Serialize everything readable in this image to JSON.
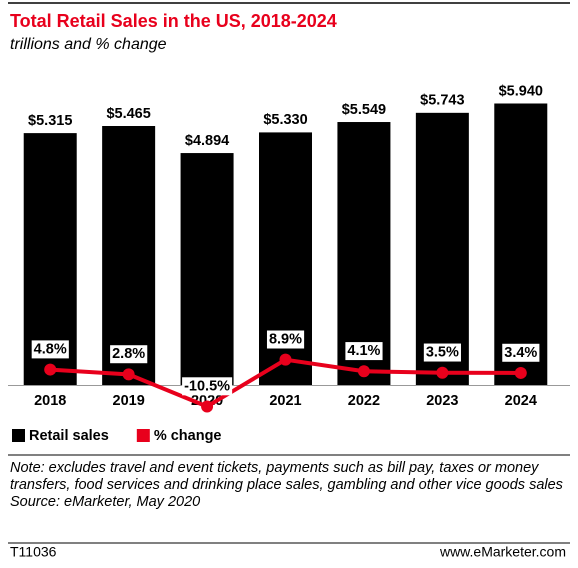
{
  "chart_data": {
    "type": "bar",
    "title": "Total Retail Sales in the US, 2018-2024",
    "subtitle": "trillions and % change",
    "categories": [
      "2018",
      "2019",
      "2020",
      "2021",
      "2022",
      "2023",
      "2024"
    ],
    "series": [
      {
        "name": "Retail sales",
        "type": "bar",
        "color": "#000000",
        "values": [
          5.315,
          5.465,
          4.894,
          5.33,
          5.549,
          5.743,
          5.94
        ],
        "value_labels": [
          "$5.315",
          "$5.465",
          "$4.894",
          "$5.330",
          "$5.549",
          "$5.743",
          "$5.940"
        ]
      },
      {
        "name": "% change",
        "type": "line",
        "axis": "y2",
        "color": "#e8001c",
        "values": [
          4.8,
          2.8,
          -10.5,
          8.9,
          4.1,
          3.5,
          3.4
        ],
        "value_labels": [
          "4.8%",
          "2.8%",
          "-10.5%",
          "8.9%",
          "4.1%",
          "3.5%",
          "3.4%"
        ]
      }
    ],
    "ylim": [
      0,
      6.9
    ],
    "y2lim": [
      -1.6,
      134
    ],
    "note": "Note: excludes travel and event tickets, payments such as bill pay, taxes or money transfers, food services and drinking place sales, gambling and other vice goods sales",
    "source": "Source: eMarketer, May 2020",
    "id": "T11036",
    "brand": "www.eMarketer.com"
  }
}
